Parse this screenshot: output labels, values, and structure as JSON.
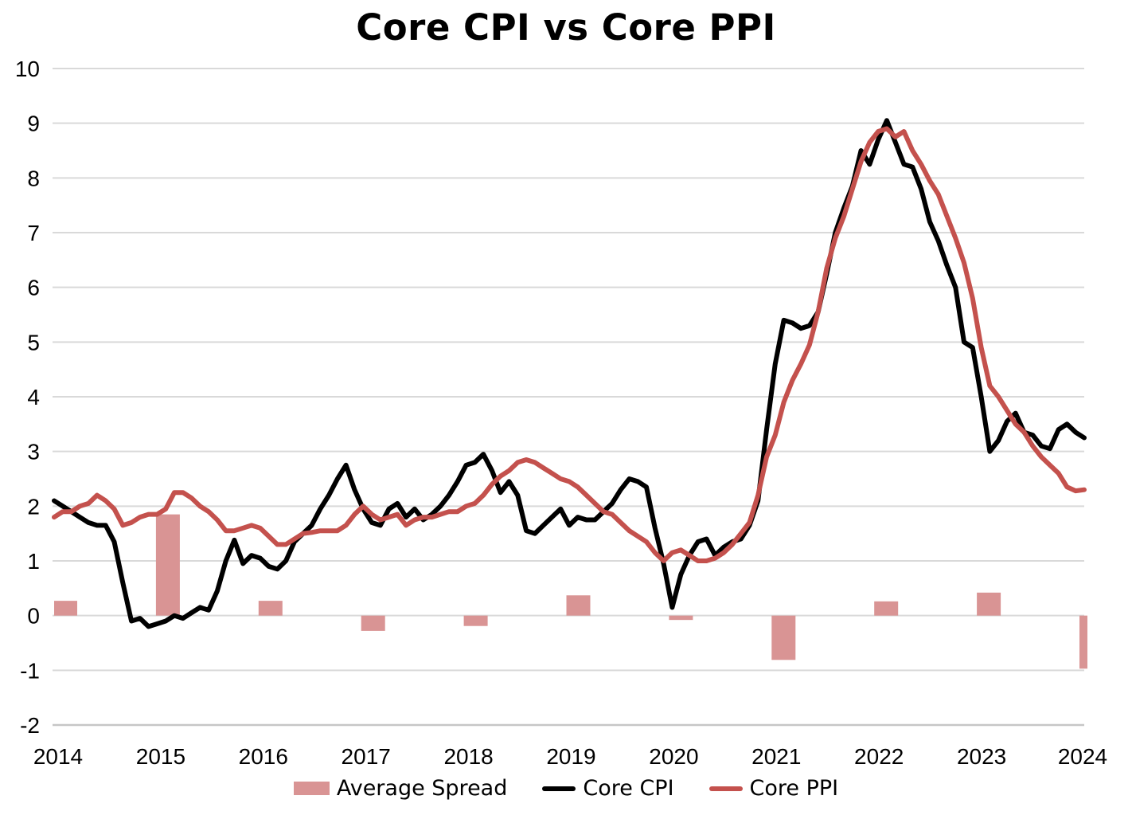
{
  "page": {
    "background": "#ffffff"
  },
  "chart_data": {
    "type": "combo",
    "title": "Core CPI vs Core PPI",
    "grid": "horizontal",
    "gridline_color": "#d9d9d9",
    "axis_line_color": "#c6c6c6",
    "ylim": [
      -2,
      10
    ],
    "y_ticks": [
      10,
      9,
      8,
      7,
      6,
      5,
      4,
      3,
      2,
      1,
      0,
      -1,
      -2
    ],
    "x_tick_labels": [
      "2014",
      "2015",
      "2016",
      "2017",
      "2018",
      "2019",
      "2020",
      "2021",
      "2022",
      "2023",
      "2024"
    ],
    "legend_position": "bottom",
    "legend": [
      {
        "label": "Average Spread",
        "type": "bar",
        "color": "#d99494"
      },
      {
        "label": "Core CPI",
        "type": "line",
        "color": "#000000"
      },
      {
        "label": "Core PPI",
        "type": "line",
        "color": "#c4514d"
      }
    ],
    "bar_series": {
      "name": "Average Spread",
      "color": "#d99494",
      "categories": [
        "2014",
        "2015",
        "2016",
        "2017",
        "2018",
        "2019",
        "2020",
        "2021",
        "2022",
        "2023",
        "2024"
      ],
      "values": [
        0.27,
        1.85,
        0.27,
        -0.28,
        -0.19,
        0.37,
        -0.08,
        -0.81,
        0.26,
        0.42,
        -0.97
      ]
    },
    "line_series": [
      {
        "name": "Core CPI",
        "color": "#000000",
        "start": "2014-01",
        "frequency": "monthly",
        "values": [
          2.1,
          2.0,
          1.9,
          1.8,
          1.7,
          1.65,
          1.65,
          1.35,
          0.6,
          -0.1,
          -0.05,
          -0.2,
          -0.15,
          -0.1,
          0.0,
          -0.05,
          0.05,
          0.15,
          0.1,
          0.45,
          1.0,
          1.38,
          0.95,
          1.1,
          1.05,
          0.9,
          0.85,
          1.0,
          1.35,
          1.5,
          1.65,
          1.95,
          2.2,
          2.5,
          2.75,
          2.3,
          1.95,
          1.7,
          1.65,
          1.95,
          2.05,
          1.8,
          1.95,
          1.75,
          1.85,
          2.0,
          2.2,
          2.45,
          2.75,
          2.8,
          2.95,
          2.65,
          2.25,
          2.45,
          2.2,
          1.55,
          1.5,
          1.65,
          1.8,
          1.95,
          1.65,
          1.8,
          1.75,
          1.75,
          1.9,
          2.05,
          2.3,
          2.5,
          2.45,
          2.35,
          1.6,
          0.95,
          0.15,
          0.75,
          1.1,
          1.35,
          1.4,
          1.1,
          1.25,
          1.35,
          1.4,
          1.65,
          2.1,
          3.4,
          4.6,
          5.4,
          5.35,
          5.25,
          5.3,
          5.55,
          6.25,
          7.0,
          7.45,
          7.85,
          8.5,
          8.25,
          8.7,
          9.05,
          8.65,
          8.25,
          8.2,
          7.8,
          7.2,
          6.85,
          6.4,
          6.0,
          5.0,
          4.9,
          4.0,
          3.0,
          3.2,
          3.55,
          3.7,
          3.35,
          3.3,
          3.1,
          3.05,
          3.4,
          3.5,
          3.35,
          3.25
        ]
      },
      {
        "name": "Core PPI",
        "color": "#c4514d",
        "start": "2014-01",
        "frequency": "monthly",
        "values": [
          1.8,
          1.9,
          1.9,
          2.0,
          2.05,
          2.2,
          2.1,
          1.95,
          1.65,
          1.7,
          1.8,
          1.85,
          1.85,
          1.95,
          2.25,
          2.25,
          2.15,
          2.0,
          1.9,
          1.75,
          1.55,
          1.55,
          1.6,
          1.65,
          1.6,
          1.45,
          1.3,
          1.3,
          1.4,
          1.5,
          1.52,
          1.55,
          1.55,
          1.55,
          1.65,
          1.85,
          2.0,
          1.85,
          1.75,
          1.8,
          1.85,
          1.65,
          1.75,
          1.8,
          1.8,
          1.85,
          1.9,
          1.9,
          2.0,
          2.05,
          2.2,
          2.4,
          2.55,
          2.65,
          2.8,
          2.85,
          2.8,
          2.7,
          2.6,
          2.5,
          2.45,
          2.35,
          2.2,
          2.05,
          1.9,
          1.85,
          1.7,
          1.55,
          1.45,
          1.35,
          1.15,
          1.0,
          1.15,
          1.2,
          1.1,
          1.0,
          1.0,
          1.05,
          1.15,
          1.3,
          1.5,
          1.7,
          2.2,
          2.9,
          3.3,
          3.9,
          4.3,
          4.6,
          4.95,
          5.55,
          6.35,
          6.9,
          7.3,
          7.8,
          8.3,
          8.65,
          8.85,
          8.9,
          8.75,
          8.85,
          8.5,
          8.25,
          7.95,
          7.7,
          7.3,
          6.9,
          6.45,
          5.8,
          4.9,
          4.2,
          4.0,
          3.75,
          3.5,
          3.35,
          3.1,
          2.9,
          2.75,
          2.6,
          2.35,
          2.28,
          2.3
        ]
      }
    ]
  }
}
